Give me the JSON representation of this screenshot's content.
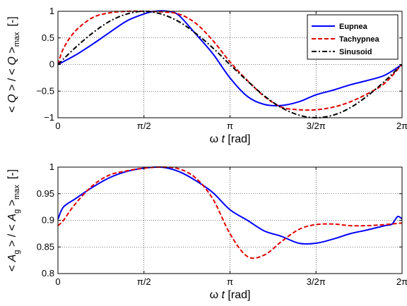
{
  "chart_data": [
    {
      "type": "line",
      "ylabel": "< Q > / < Q >max [-]",
      "ylabel_parts": {
        "open": "<",
        "var": "Q",
        "mid": "> / <",
        "var2": "Q",
        "close": ">",
        "sub": "max",
        "unit": "[-]"
      },
      "xlabel": "ω t [rad]",
      "xlabel_parts": {
        "sym": "ω",
        "var": "t",
        "unit": "[rad]"
      },
      "xlim": [
        0,
        6.2832
      ],
      "ylim": [
        -1,
        1
      ],
      "xticks": [
        0,
        1.5708,
        3.1416,
        4.7124,
        6.2832
      ],
      "xtick_labels": [
        "0",
        "π/2",
        "π",
        "3/2π",
        "2π"
      ],
      "yticks": [
        -1,
        -0.5,
        0,
        0.5,
        1
      ],
      "ytick_labels": [
        "−1",
        "−0.5",
        "0",
        "0.5",
        "1"
      ],
      "legend_position": "top-right",
      "series": [
        {
          "name": "Eupnea",
          "color": "#0000ff",
          "style": "solid",
          "x": [
            0,
            0.31,
            0.63,
            0.94,
            1.26,
            1.57,
            1.77,
            2.0,
            2.2,
            2.51,
            2.83,
            3.14,
            3.46,
            3.77,
            4.08,
            4.4,
            4.71,
            5.03,
            5.34,
            5.65,
            5.97,
            6.28
          ],
          "y": [
            0,
            0.17,
            0.38,
            0.6,
            0.82,
            0.95,
            1.0,
            1.0,
            0.93,
            0.58,
            0.2,
            -0.25,
            -0.6,
            -0.75,
            -0.77,
            -0.7,
            -0.57,
            -0.48,
            -0.38,
            -0.3,
            -0.2,
            0
          ]
        },
        {
          "name": "Tachypnea",
          "color": "#e00000",
          "style": "dashed",
          "x": [
            0,
            0.1,
            0.31,
            0.63,
            0.94,
            1.26,
            1.57,
            1.88,
            2.2,
            2.51,
            2.83,
            3.14,
            3.46,
            3.77,
            4.08,
            4.4,
            4.71,
            5.03,
            5.34,
            5.65,
            5.97,
            6.28
          ],
          "y": [
            0,
            0.3,
            0.62,
            0.88,
            0.97,
            1.0,
            1.0,
            0.99,
            0.95,
            0.78,
            0.45,
            0.05,
            -0.3,
            -0.6,
            -0.8,
            -0.85,
            -0.85,
            -0.8,
            -0.7,
            -0.55,
            -0.35,
            0
          ]
        },
        {
          "name": "Sinusoid",
          "color": "#000000",
          "style": "dashdot",
          "x": [
            0,
            0.31,
            0.63,
            0.94,
            1.26,
            1.57,
            1.88,
            2.2,
            2.51,
            2.83,
            3.14,
            3.46,
            3.77,
            4.08,
            4.4,
            4.71,
            5.03,
            5.34,
            5.65,
            5.97,
            6.28
          ],
          "y": [
            0,
            0.31,
            0.59,
            0.81,
            0.95,
            1.0,
            0.95,
            0.81,
            0.59,
            0.31,
            0,
            -0.31,
            -0.59,
            -0.81,
            -0.95,
            -1.0,
            -0.95,
            -0.81,
            -0.59,
            -0.31,
            0
          ]
        }
      ]
    },
    {
      "type": "line",
      "ylabel": "< Ag > / < Ag >max [-]",
      "ylabel_parts": {
        "open": "<",
        "var": "A",
        "varsub": "g",
        "mid": "> / <",
        "var2": "A",
        "var2sub": "g",
        "close": ">",
        "sub": "max",
        "unit": "[-]"
      },
      "xlabel": "ω t [rad]",
      "xlabel_parts": {
        "sym": "ω",
        "var": "t",
        "unit": "[rad]"
      },
      "xlim": [
        0,
        6.2832
      ],
      "ylim": [
        0.8,
        1.0
      ],
      "xticks": [
        0,
        1.5708,
        3.1416,
        4.7124,
        6.2832
      ],
      "xtick_labels": [
        "0",
        "π/2",
        "π",
        "3/2π",
        "2π"
      ],
      "yticks": [
        0.8,
        0.85,
        0.9,
        0.95,
        1.0
      ],
      "ytick_labels": [
        "0.8",
        "0.85",
        "0.9",
        "0.95",
        "1"
      ],
      "series": [
        {
          "name": "Eupnea",
          "color": "#0000ff",
          "style": "solid",
          "x": [
            0,
            0.1,
            0.31,
            0.63,
            0.94,
            1.26,
            1.57,
            1.88,
            2.2,
            2.51,
            2.83,
            3.14,
            3.46,
            3.77,
            4.08,
            4.4,
            4.71,
            5.03,
            5.34,
            5.65,
            5.97,
            6.1,
            6.2,
            6.28
          ],
          "y": [
            0.902,
            0.925,
            0.94,
            0.962,
            0.98,
            0.992,
            0.998,
            1.0,
            0.992,
            0.975,
            0.952,
            0.92,
            0.9,
            0.88,
            0.87,
            0.857,
            0.857,
            0.865,
            0.875,
            0.882,
            0.89,
            0.893,
            0.907,
            0.903
          ]
        },
        {
          "name": "Tachypnea",
          "color": "#e00000",
          "style": "dashed",
          "x": [
            0,
            0.1,
            0.31,
            0.63,
            0.94,
            1.26,
            1.57,
            1.88,
            2.2,
            2.51,
            2.83,
            3.14,
            3.46,
            3.77,
            4.08,
            4.4,
            4.71,
            5.03,
            5.34,
            5.65,
            5.97,
            6.28
          ],
          "y": [
            0.89,
            0.9,
            0.93,
            0.965,
            0.985,
            0.993,
            0.998,
            1.0,
            0.997,
            0.98,
            0.94,
            0.875,
            0.832,
            0.835,
            0.86,
            0.883,
            0.892,
            0.893,
            0.89,
            0.89,
            0.892,
            0.895
          ]
        }
      ]
    }
  ]
}
